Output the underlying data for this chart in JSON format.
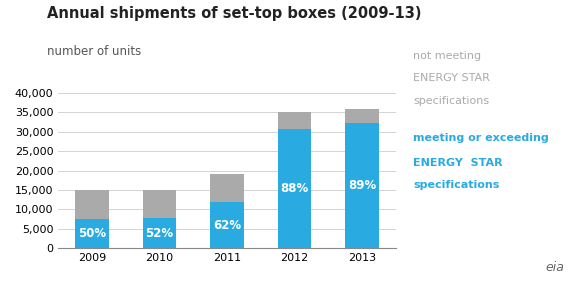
{
  "title": "Annual shipments of set-top boxes (2009-13)",
  "subtitle": "number of units",
  "years": [
    2009,
    2010,
    2011,
    2012,
    2013
  ],
  "blue_values": [
    7500,
    7800,
    11800,
    30800,
    32200
  ],
  "gray_values": [
    7500,
    7200,
    7200,
    4200,
    3800
  ],
  "percentages": [
    "50%",
    "52%",
    "62%",
    "88%",
    "89%"
  ],
  "blue_color": "#29abe2",
  "gray_color": "#aaaaaa",
  "ylim": [
    0,
    40000
  ],
  "yticks": [
    0,
    5000,
    10000,
    15000,
    20000,
    25000,
    30000,
    35000,
    40000
  ],
  "legend_gray_text": [
    "not meeting",
    "ENERGY STAR",
    "specifications"
  ],
  "legend_blue_text": [
    "meeting or exceeding",
    "ENERGY  STAR",
    "specifications"
  ],
  "legend_gray_color": "#aaaaaa",
  "legend_blue_color": "#29abe2",
  "title_fontsize": 10.5,
  "subtitle_fontsize": 8.5,
  "tick_fontsize": 8,
  "pct_fontsize": 8.5,
  "legend_fontsize": 8,
  "background_color": "#ffffff"
}
